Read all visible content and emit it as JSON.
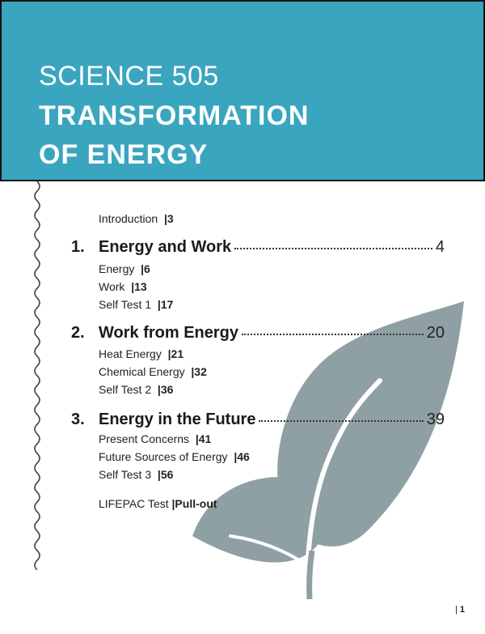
{
  "header": {
    "course": "SCIENCE 505",
    "title_line1": "TRANSFORMATION",
    "title_line2": "OF ENERGY",
    "background_color": "#3aa5bf"
  },
  "intro": {
    "label": "Introduction",
    "page": "|3"
  },
  "chapters": [
    {
      "number": "1.",
      "title": "Energy and Work",
      "page": "4",
      "sections": [
        {
          "label": "Energy",
          "page": "|6"
        },
        {
          "label": "Work",
          "page": "|13"
        },
        {
          "label": "Self Test 1",
          "page": "|17"
        }
      ]
    },
    {
      "number": "2.",
      "title": "Work from Energy",
      "page": "20",
      "sections": [
        {
          "label": "Heat Energy",
          "page": "|21"
        },
        {
          "label": "Chemical Energy",
          "page": "|32"
        },
        {
          "label": "Self Test 2",
          "page": "|36"
        }
      ]
    },
    {
      "number": "3.",
      "title": "Energy in the Future",
      "page": "39",
      "sections": [
        {
          "label": "Present Concerns",
          "page": "|41"
        },
        {
          "label": "Future Sources of Energy",
          "page": "|46"
        },
        {
          "label": "Self Test 3",
          "page": "|56"
        }
      ]
    }
  ],
  "test": {
    "label": "LIFEPAC Test",
    "page": "|Pull-out"
  },
  "page_number": {
    "separator": "|",
    "value": "1"
  },
  "decoration": {
    "leaf_icon": "plant-sprout-icon",
    "leaf_color": "#8fa0a4"
  }
}
